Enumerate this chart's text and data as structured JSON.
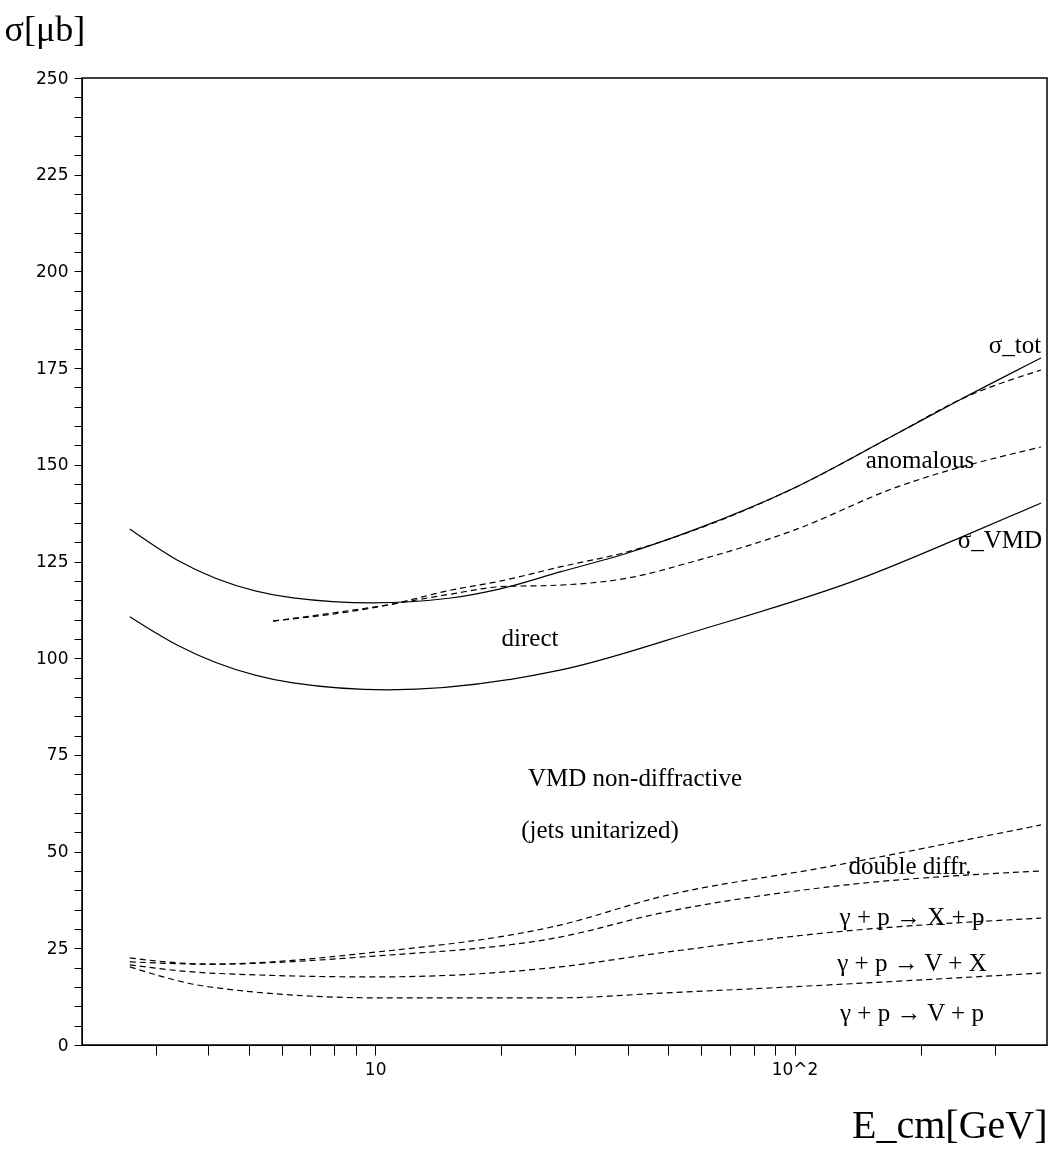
{
  "chart_data": {
    "type": "line",
    "xlabel": "E_cm[GeV]",
    "ylabel": "σ[μb]",
    "log": "x",
    "xlim": [
      2,
      400
    ],
    "ylim": [
      0,
      250
    ],
    "xticks": [
      {
        "value": 3,
        "label": null
      },
      {
        "value": 4,
        "label": null
      },
      {
        "value": 5,
        "label": null
      },
      {
        "value": 6,
        "label": null
      },
      {
        "value": 7,
        "label": null
      },
      {
        "value": 8,
        "label": null
      },
      {
        "value": 9,
        "label": null
      },
      10,
      {
        "value": 20,
        "label": null
      },
      {
        "value": 30,
        "label": null
      },
      {
        "value": 40,
        "label": null
      },
      {
        "value": 50,
        "label": null
      },
      {
        "value": 60,
        "label": null
      },
      {
        "value": 70,
        "label": null
      },
      {
        "value": 80,
        "label": null
      },
      {
        "value": 90,
        "label": null
      },
      {
        "value": 100,
        "label": "10^2"
      },
      {
        "value": 200,
        "label": null
      },
      {
        "value": 300,
        "label": null
      }
    ],
    "yticks": [
      0,
      {
        "value": 5,
        "label": null
      },
      {
        "value": 10,
        "label": null
      },
      {
        "value": 15,
        "label": null
      },
      {
        "value": 20,
        "label": null
      },
      25,
      {
        "value": 30,
        "label": null
      },
      {
        "value": 35,
        "label": null
      },
      {
        "value": 40,
        "label": null
      },
      {
        "value": 45,
        "label": null
      },
      50,
      {
        "value": 55,
        "label": null
      },
      {
        "value": 60,
        "label": null
      },
      {
        "value": 65,
        "label": null
      },
      {
        "value": 70,
        "label": null
      },
      75,
      {
        "value": 80,
        "label": null
      },
      {
        "value": 85,
        "label": null
      },
      {
        "value": 90,
        "label": null
      },
      {
        "value": 95,
        "label": null
      },
      100,
      {
        "value": 105,
        "label": null
      },
      {
        "value": 110,
        "label": null
      },
      {
        "value": 115,
        "label": null
      },
      {
        "value": 120,
        "label": null
      },
      125,
      {
        "value": 130,
        "label": null
      },
      {
        "value": 135,
        "label": null
      },
      {
        "value": 140,
        "label": null
      },
      {
        "value": 145,
        "label": null
      },
      150,
      {
        "value": 155,
        "label": null
      },
      {
        "value": 160,
        "label": null
      },
      {
        "value": 165,
        "label": null
      },
      {
        "value": 170,
        "label": null
      },
      175,
      {
        "value": 180,
        "label": null
      },
      {
        "value": 185,
        "label": null
      },
      {
        "value": 190,
        "label": null
      },
      {
        "value": 195,
        "label": null
      },
      200,
      {
        "value": 205,
        "label": null
      },
      {
        "value": 210,
        "label": null
      },
      {
        "value": 215,
        "label": null
      },
      {
        "value": 220,
        "label": null
      },
      225,
      {
        "value": 230,
        "label": null
      },
      {
        "value": 235,
        "label": null
      },
      {
        "value": 240,
        "label": null
      },
      {
        "value": 245,
        "label": null
      },
      250
    ],
    "grid": false,
    "marker": "none",
    "series": [
      {
        "color": "#000000",
        "line_style": "solid",
        "x": [
          2.6,
          3.37,
          6.37,
          9.85,
          15,
          20,
          27.6,
          40,
          57.4,
          99.8,
          173,
          250,
          387
        ],
        "values": [
          133.4,
          125.4,
          115.6,
          114.3,
          115.5,
          118,
          122.3,
          127.2,
          133.1,
          144,
          157.7,
          167,
          177.6
        ]
      },
      {
        "color": "#000000",
        "line_style": "dashed",
        "x": [
          5.71,
          11,
          15,
          20,
          27.6,
          40,
          57.4,
          99.8,
          173,
          250,
          387
        ],
        "values": [
          109.6,
          114,
          117.5,
          120,
          123.6,
          127.5,
          133,
          144,
          157.7,
          167,
          174.5
        ]
      },
      {
        "color": "#000000",
        "line_style": "dashed",
        "x": [
          5.71,
          11,
          15,
          20,
          27.6,
          40,
          57.4,
          99.8,
          173,
          387
        ],
        "values": [
          109.6,
          114,
          116.5,
          118.5,
          118.9,
          120.7,
          125,
          133.1,
          144,
          154.6
        ]
      },
      {
        "color": "#000000",
        "line_style": "solid",
        "x": [
          2.6,
          3.37,
          6.37,
          10.7,
          27.6,
          59.5,
          144.6,
          250,
          387
        ],
        "values": [
          110.7,
          103.4,
          93.6,
          91.8,
          96.9,
          107.3,
          120.7,
          131.3,
          140.1
        ]
      },
      {
        "color": "#000000",
        "line_style": "dashed",
        "x": [
          2.6,
          4.04,
          10,
          27.6,
          47.9,
          119,
          387
        ],
        "values": [
          22.5,
          20.9,
          24.0,
          31.0,
          38.3,
          46.0,
          56.9
        ]
      },
      {
        "color": "#000000",
        "line_style": "dashed",
        "x": [
          2.6,
          4.04,
          10,
          27.6,
          47.9,
          119,
          387
        ],
        "values": [
          21.5,
          20.9,
          23.0,
          27.9,
          34.1,
          40.8,
          45.0
        ]
      },
      {
        "color": "#000000",
        "line_style": "dashed",
        "x": [
          2.6,
          4.04,
          10,
          27.6,
          47.9,
          119,
          387
        ],
        "values": [
          20.7,
          18.6,
          17.6,
          20.2,
          23.8,
          29.0,
          32.8
        ]
      },
      {
        "color": "#000000",
        "line_style": "dashed",
        "x": [
          2.6,
          4.04,
          10,
          27.6,
          47.9,
          119,
          387
        ],
        "values": [
          20.2,
          15.0,
          12.2,
          12.2,
          13.4,
          15.5,
          18.6
        ]
      }
    ],
    "annotations": [
      "σ_tot",
      "anomalous",
      "σ_VMD",
      "direct",
      "VMD non-diffractive",
      "(jets unitarized)",
      "double diffr.",
      "γ + p → X + p",
      "γ + p → V + X",
      "γ + p → V + p"
    ]
  }
}
